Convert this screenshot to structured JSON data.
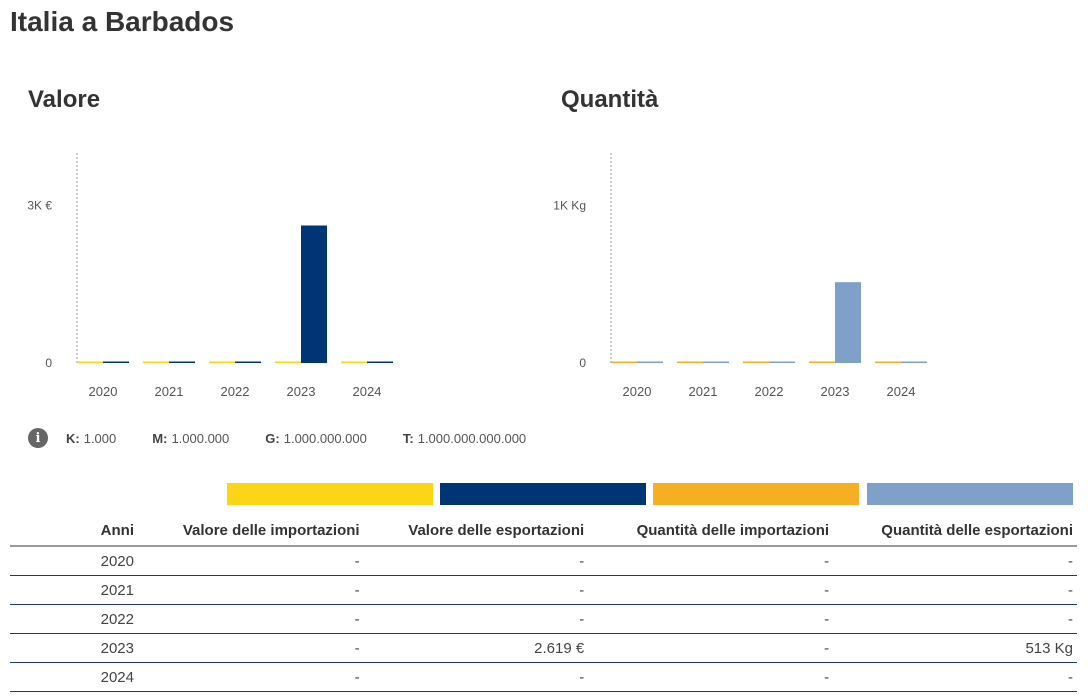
{
  "page_title": "Italia a Barbados",
  "colors": {
    "import_value": "#FCD616",
    "export_value": "#003575",
    "import_qty": "#F6AE22",
    "export_qty": "#7FA1C9"
  },
  "chart_data": [
    {
      "type": "bar",
      "title": "Valore",
      "categories": [
        "2020",
        "2021",
        "2022",
        "2023",
        "2024"
      ],
      "series": [
        {
          "name": "Valore delle importazioni",
          "values": [
            0,
            0,
            0,
            0,
            0
          ]
        },
        {
          "name": "Valore delle esportazioni",
          "values": [
            0,
            0,
            0,
            2619,
            0
          ]
        }
      ],
      "yticks": [
        {
          "value": 0,
          "label": "0"
        },
        {
          "value": 3000,
          "label": "3K €"
        }
      ],
      "ylim": [
        0,
        4000
      ]
    },
    {
      "type": "bar",
      "title": "Quantità",
      "categories": [
        "2020",
        "2021",
        "2022",
        "2023",
        "2024"
      ],
      "series": [
        {
          "name": "Quantità delle importazioni",
          "values": [
            0,
            0,
            0,
            0,
            0
          ]
        },
        {
          "name": "Quantità delle esportazioni",
          "values": [
            0,
            0,
            0,
            513,
            0
          ]
        }
      ],
      "yticks": [
        {
          "value": 0,
          "label": "0"
        },
        {
          "value": 1000,
          "label": "1K Kg"
        }
      ],
      "ylim": [
        0,
        1333
      ]
    }
  ],
  "units_legend": [
    {
      "key": "K:",
      "value": "1.000"
    },
    {
      "key": "M:",
      "value": "1.000.000"
    },
    {
      "key": "G:",
      "value": "1.000.000.000"
    },
    {
      "key": "T:",
      "value": "1.000.000.000.000"
    }
  ],
  "table": {
    "headers": [
      "Anni",
      "Valore delle importazioni",
      "Valore delle esportazioni",
      "Quantità delle importazioni",
      "Quantità delle esportazioni"
    ],
    "rows": [
      [
        "2020",
        "-",
        "-",
        "-",
        "-"
      ],
      [
        "2021",
        "-",
        "-",
        "-",
        "-"
      ],
      [
        "2022",
        "-",
        "-",
        "-",
        "-"
      ],
      [
        "2023",
        "-",
        "2.619 €",
        "-",
        "513 Kg"
      ],
      [
        "2024",
        "-",
        "-",
        "-",
        "-"
      ]
    ]
  }
}
